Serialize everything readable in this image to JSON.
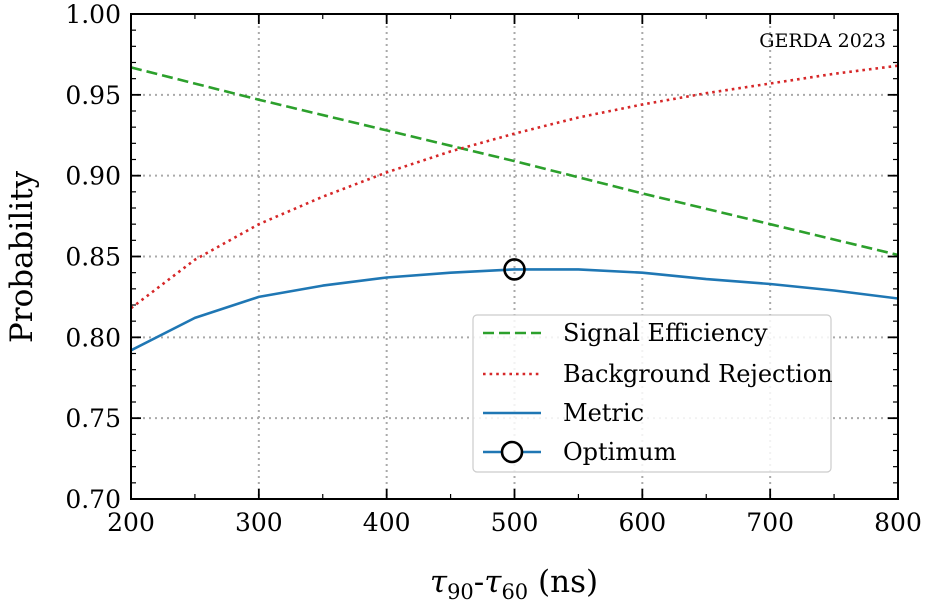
{
  "chart_data": {
    "type": "line",
    "title": "",
    "xlabel": {
      "tau": "τ",
      "sub1": "90",
      "dash": "-",
      "sub2": "60",
      "unit": " (ns)"
    },
    "ylabel": "Probability",
    "xlim": [
      200,
      800
    ],
    "ylim": [
      0.7,
      1.0
    ],
    "xticks": [
      200,
      300,
      400,
      500,
      600,
      700,
      800
    ],
    "yticks": [
      0.7,
      0.75,
      0.8,
      0.85,
      0.9,
      0.95,
      1.0
    ],
    "xtick_labels": [
      "200",
      "300",
      "400",
      "500",
      "600",
      "700",
      "800"
    ],
    "ytick_labels": [
      "0.70",
      "0.75",
      "0.80",
      "0.85",
      "0.90",
      "0.95",
      "1.00"
    ],
    "grid": true,
    "legend_position": "lower-right",
    "annotation": "GERDA 2023",
    "series": [
      {
        "name": "Signal Efficiency",
        "style": "dashed",
        "color": "#2ca02c",
        "x": [
          200,
          300,
          400,
          500,
          600,
          700,
          800
        ],
        "y": [
          0.967,
          0.947,
          0.928,
          0.909,
          0.889,
          0.87,
          0.851
        ]
      },
      {
        "name": "Background Rejection",
        "style": "dotted",
        "color": "#d62728",
        "x": [
          200,
          250,
          300,
          350,
          400,
          450,
          500,
          550,
          600,
          650,
          700,
          750,
          800
        ],
        "y": [
          0.818,
          0.848,
          0.87,
          0.887,
          0.902,
          0.915,
          0.926,
          0.936,
          0.944,
          0.951,
          0.957,
          0.963,
          0.968
        ]
      },
      {
        "name": "Metric",
        "style": "solid",
        "color": "#1f77b4",
        "x": [
          200,
          250,
          300,
          350,
          400,
          450,
          500,
          550,
          600,
          650,
          700,
          750,
          800
        ],
        "y": [
          0.792,
          0.812,
          0.825,
          0.832,
          0.837,
          0.84,
          0.842,
          0.842,
          0.84,
          0.836,
          0.833,
          0.829,
          0.824
        ]
      }
    ],
    "optimum": {
      "name": "Optimum",
      "x": 500,
      "y": 0.842,
      "marker": "circle-open",
      "color": "#000000"
    }
  }
}
